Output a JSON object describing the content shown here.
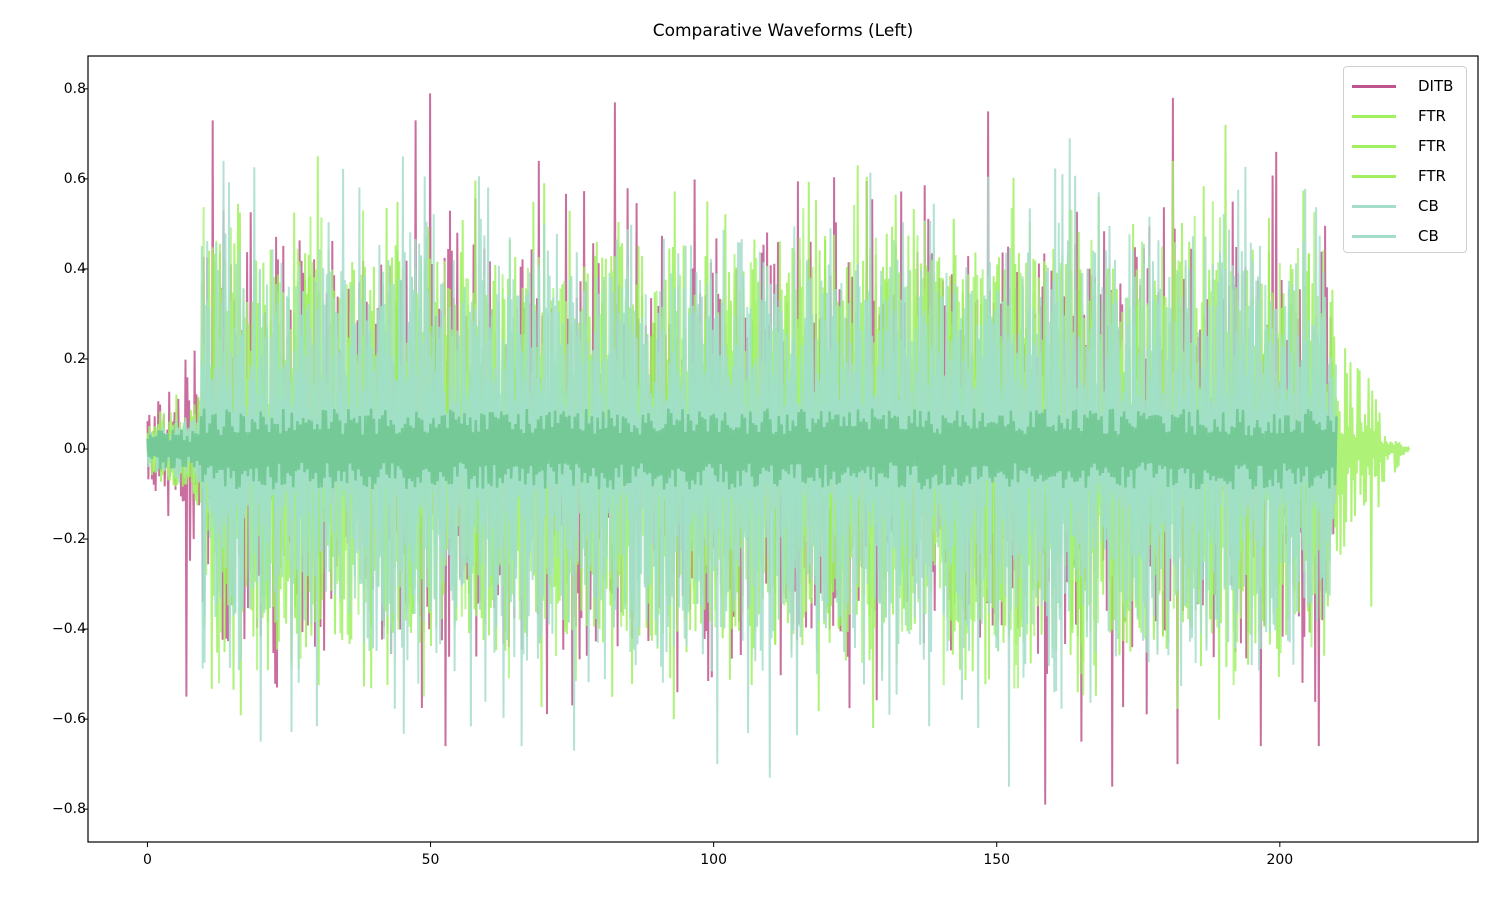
{
  "chart_data": {
    "type": "line",
    "title": "Comparative Waveforms (Left)",
    "xlabel": "",
    "ylabel": "",
    "xlim": [
      -10.5,
      235
    ],
    "ylim": [
      -0.873,
      0.873
    ],
    "grid": false,
    "legend_position": "upper right",
    "x_ticks": [
      0,
      50,
      100,
      150,
      200
    ],
    "x_tick_labels": [
      "0",
      "50",
      "100",
      "150",
      "200"
    ],
    "y_ticks": [
      0.8,
      0.6,
      0.4,
      0.2,
      0.0,
      -0.2,
      -0.4,
      -0.6,
      -0.8
    ],
    "y_tick_labels": [
      "0.8",
      "0.6",
      "0.4",
      "0.2",
      "0.0",
      "−0.2",
      "−0.4",
      "−0.6",
      "−0.8"
    ],
    "series": [
      {
        "name": "DITB",
        "color": "#c0558d",
        "alpha": 0.85,
        "duration": 210,
        "intro_end": 9.5,
        "intro_amp": 0.22,
        "body_amp": 0.42,
        "fade_start": 208,
        "notable_peaks": [
          {
            "t": 11.5,
            "v": 0.73
          },
          {
            "t": 47.5,
            "v": 0.73
          },
          {
            "t": 50.0,
            "v": 0.79
          },
          {
            "t": 82.5,
            "v": 0.77
          },
          {
            "t": 148.5,
            "v": 0.75
          },
          {
            "t": 181.0,
            "v": 0.78
          },
          {
            "t": 199.5,
            "v": 0.66
          },
          {
            "t": 69.0,
            "v": 0.64
          },
          {
            "t": 7.0,
            "v": -0.55
          },
          {
            "t": 52.5,
            "v": -0.66
          },
          {
            "t": 158.5,
            "v": -0.79
          },
          {
            "t": 170.5,
            "v": -0.75
          },
          {
            "t": 165.0,
            "v": -0.65
          },
          {
            "t": 182.0,
            "v": -0.7
          },
          {
            "t": 196.5,
            "v": -0.66
          },
          {
            "t": 207.0,
            "v": -0.66
          }
        ]
      },
      {
        "name": "FTR",
        "color": "#a0f060",
        "alpha": 0.85,
        "duration": 223,
        "intro_end": 9.5,
        "intro_amp": 0.12,
        "body_amp": 0.42,
        "fade_start": 209,
        "tail_amp": 0.25,
        "notable_peaks": [
          {
            "t": 30.0,
            "v": 0.65
          },
          {
            "t": 125.5,
            "v": 0.63
          },
          {
            "t": 190.5,
            "v": 0.72
          },
          {
            "t": 181.0,
            "v": 0.64
          },
          {
            "t": 128.0,
            "v": -0.62
          },
          {
            "t": 216.0,
            "v": -0.35
          }
        ]
      },
      {
        "name": "FTR",
        "color": "#9aef55",
        "alpha": 0.8,
        "duration": 210,
        "intro_end": 9.5,
        "intro_amp": 0.1,
        "body_amp": 0.38,
        "fade_start": 208,
        "notable_peaks": []
      },
      {
        "name": "FTR",
        "color": "#a8f275",
        "alpha": 0.8,
        "duration": 210,
        "intro_end": 9.5,
        "intro_amp": 0.1,
        "body_amp": 0.38,
        "fade_start": 208,
        "notable_peaks": []
      },
      {
        "name": "CB",
        "color": "#a6dccb",
        "alpha": 0.85,
        "duration": 210,
        "intro_end": 9.5,
        "intro_amp": 0.08,
        "body_amp": 0.44,
        "fade_start": 208,
        "notable_peaks": [
          {
            "t": 13.5,
            "v": 0.64
          },
          {
            "t": 45.0,
            "v": 0.65
          },
          {
            "t": 163.0,
            "v": 0.69
          },
          {
            "t": 20.0,
            "v": -0.65
          },
          {
            "t": 100.5,
            "v": -0.7
          },
          {
            "t": 110.0,
            "v": -0.73
          },
          {
            "t": 152.0,
            "v": -0.75
          },
          {
            "t": 75.5,
            "v": -0.67
          },
          {
            "t": 66.0,
            "v": -0.66
          }
        ]
      },
      {
        "name": "CB",
        "color": "#9fe0c8",
        "alpha": 0.8,
        "duration": 210,
        "intro_end": 9.5,
        "intro_amp": 0.08,
        "body_amp": 0.36,
        "fade_start": 208,
        "notable_peaks": []
      }
    ],
    "core_color": "#74c996",
    "core_amp": 0.06
  },
  "legend": {
    "items": [
      {
        "label": "DITB",
        "color": "#c0558d"
      },
      {
        "label": "FTR",
        "color": "#a0f060"
      },
      {
        "label": "FTR",
        "color": "#a0f060"
      },
      {
        "label": "FTR",
        "color": "#a0f060"
      },
      {
        "label": "CB",
        "color": "#a6dccb"
      },
      {
        "label": "CB",
        "color": "#a6dccb"
      }
    ]
  }
}
